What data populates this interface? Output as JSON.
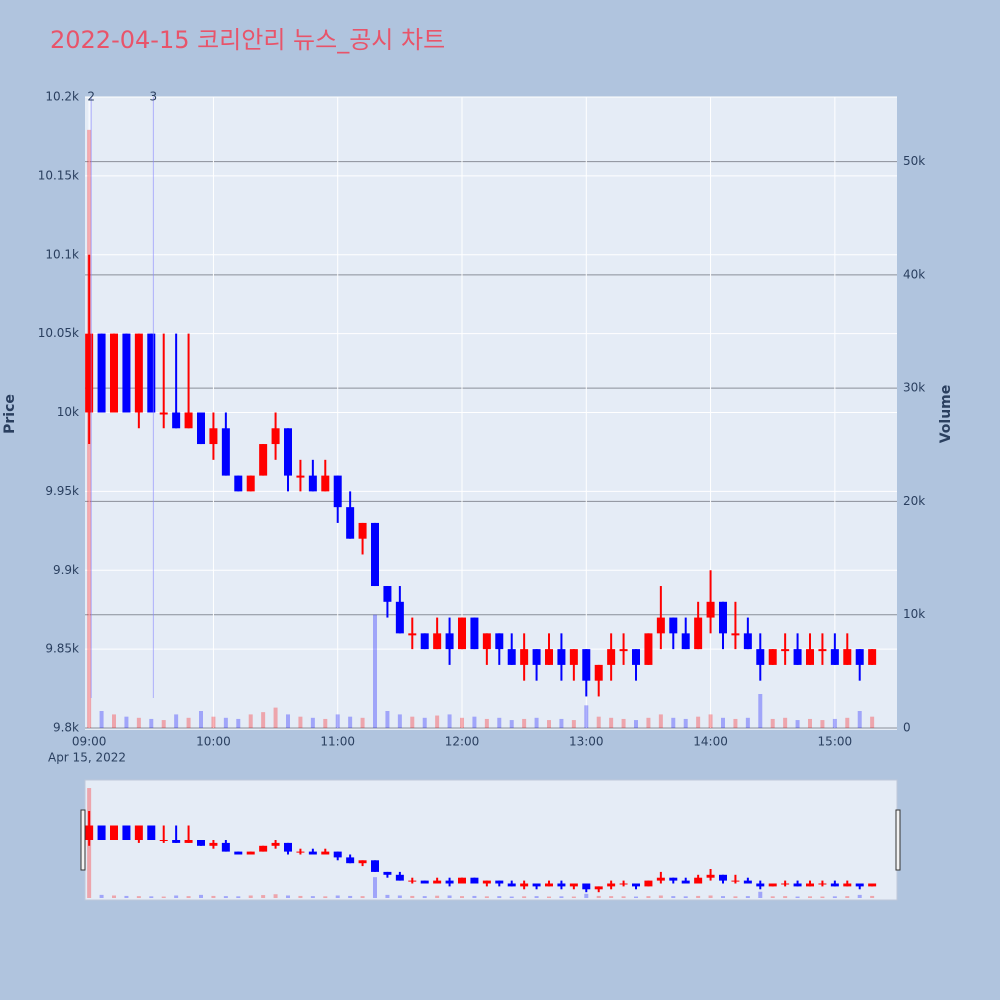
{
  "chart_data": {
    "type": "candlestick",
    "title": "2022-04-15 코리안리 뉴스_공시 차트",
    "y_title": "Price",
    "y2_title": "Volume",
    "x": [
      "2022-04-15T09:00",
      "2022-04-15T09:06",
      "2022-04-15T09:12",
      "2022-04-15T09:18",
      "2022-04-15T09:24",
      "2022-04-15T09:30",
      "2022-04-15T09:36",
      "2022-04-15T09:42",
      "2022-04-15T09:48",
      "2022-04-15T09:54",
      "2022-04-15T10:00",
      "2022-04-15T10:06",
      "2022-04-15T10:12",
      "2022-04-15T10:18",
      "2022-04-15T10:24",
      "2022-04-15T10:30",
      "2022-04-15T10:36",
      "2022-04-15T10:42",
      "2022-04-15T10:48",
      "2022-04-15T10:54",
      "2022-04-15T11:00",
      "2022-04-15T11:06",
      "2022-04-15T11:12",
      "2022-04-15T11:18",
      "2022-04-15T11:24",
      "2022-04-15T11:30",
      "2022-04-15T11:36",
      "2022-04-15T11:42",
      "2022-04-15T11:48",
      "2022-04-15T11:54",
      "2022-04-15T12:00",
      "2022-04-15T12:06",
      "2022-04-15T12:12",
      "2022-04-15T12:18",
      "2022-04-15T12:24",
      "2022-04-15T12:30",
      "2022-04-15T12:36",
      "2022-04-15T12:42",
      "2022-04-15T12:48",
      "2022-04-15T12:54",
      "2022-04-15T13:00",
      "2022-04-15T13:06",
      "2022-04-15T13:12",
      "2022-04-15T13:18",
      "2022-04-15T13:24",
      "2022-04-15T13:30",
      "2022-04-15T13:36",
      "2022-04-15T13:42",
      "2022-04-15T13:48",
      "2022-04-15T13:54",
      "2022-04-15T14:00",
      "2022-04-15T14:06",
      "2022-04-15T14:12",
      "2022-04-15T14:18",
      "2022-04-15T14:24",
      "2022-04-15T14:30",
      "2022-04-15T14:36",
      "2022-04-15T14:42",
      "2022-04-15T14:48",
      "2022-04-15T14:54",
      "2022-04-15T15:00",
      "2022-04-15T15:06",
      "2022-04-15T15:12",
      "2022-04-15T15:18"
    ],
    "open": [
      10000,
      10050,
      10000,
      10050,
      10000,
      10050,
      10000,
      10000,
      9990,
      10000,
      9980,
      9990,
      9960,
      9950,
      9960,
      9980,
      9990,
      9960,
      9960,
      9950,
      9960,
      9940,
      9920,
      9930,
      9890,
      9880,
      9860,
      9860,
      9850,
      9860,
      9850,
      9870,
      9850,
      9860,
      9850,
      9840,
      9850,
      9840,
      9850,
      9840,
      9850,
      9830,
      9840,
      9850,
      9850,
      9840,
      9860,
      9870,
      9860,
      9850,
      9870,
      9880,
      9860,
      9860,
      9850,
      9840,
      9850,
      9850,
      9840,
      9850,
      9850,
      9840,
      9850,
      9840
    ],
    "high": [
      10100,
      10050,
      10050,
      10050,
      10050,
      10050,
      10050,
      10050,
      10050,
      10000,
      10000,
      10000,
      9960,
      9960,
      9980,
      10000,
      9990,
      9970,
      9970,
      9970,
      9960,
      9950,
      9930,
      9930,
      9890,
      9890,
      9870,
      9860,
      9870,
      9870,
      9870,
      9870,
      9860,
      9860,
      9860,
      9860,
      9850,
      9860,
      9860,
      9850,
      9850,
      9840,
      9860,
      9860,
      9850,
      9860,
      9890,
      9870,
      9870,
      9880,
      9900,
      9880,
      9880,
      9870,
      9860,
      9850,
      9860,
      9860,
      9860,
      9860,
      9860,
      9860,
      9850,
      9850
    ],
    "low": [
      9980,
      10000,
      10000,
      10000,
      9990,
      10000,
      9990,
      9990,
      9990,
      9980,
      9970,
      9960,
      9950,
      9950,
      9960,
      9970,
      9950,
      9950,
      9950,
      9950,
      9930,
      9920,
      9910,
      9890,
      9870,
      9860,
      9850,
      9850,
      9850,
      9840,
      9850,
      9850,
      9840,
      9840,
      9840,
      9830,
      9830,
      9840,
      9830,
      9830,
      9820,
      9820,
      9830,
      9840,
      9830,
      9840,
      9850,
      9850,
      9850,
      9850,
      9860,
      9850,
      9850,
      9850,
      9830,
      9840,
      9840,
      9840,
      9840,
      9840,
      9840,
      9840,
      9830,
      9840
    ],
    "close": [
      10050,
      10000,
      10050,
      10000,
      10050,
      10000,
      10000,
      9990,
      10000,
      9980,
      9990,
      9960,
      9950,
      9960,
      9980,
      9990,
      9960,
      9960,
      9950,
      9960,
      9940,
      9920,
      9930,
      9890,
      9880,
      9860,
      9860,
      9850,
      9860,
      9850,
      9870,
      9850,
      9860,
      9850,
      9840,
      9850,
      9840,
      9850,
      9840,
      9850,
      9830,
      9840,
      9850,
      9850,
      9840,
      9860,
      9870,
      9860,
      9850,
      9870,
      9880,
      9860,
      9860,
      9850,
      9840,
      9850,
      9850,
      9840,
      9850,
      9850,
      9840,
      9850,
      9840,
      9850
    ],
    "volume": [
      52800,
      1500,
      1200,
      1000,
      900,
      800,
      700,
      1200,
      900,
      1500,
      1000,
      900,
      800,
      1200,
      1400,
      1800,
      1200,
      1000,
      900,
      800,
      1200,
      1000,
      900,
      10000,
      1500,
      1200,
      1000,
      900,
      1100,
      1200,
      900,
      1000,
      800,
      900,
      700,
      800,
      900,
      700,
      800,
      700,
      2000,
      1000,
      900,
      800,
      700,
      900,
      1200,
      900,
      800,
      1000,
      1200,
      900,
      800,
      900,
      3000,
      800,
      900,
      700,
      800,
      700,
      800,
      900,
      1500,
      1000
    ],
    "increasing_color": "#ff0000",
    "decreasing_color": "#0000ff",
    "xlim": [
      "2022-04-15T08:58",
      "2022-04-15T15:30"
    ],
    "xticks": [
      {
        "value": "2022-04-15T09:00",
        "label": "09:00"
      },
      {
        "value": "2022-04-15T10:00",
        "label": "10:00"
      },
      {
        "value": "2022-04-15T11:00",
        "label": "11:00"
      },
      {
        "value": "2022-04-15T12:00",
        "label": "12:00"
      },
      {
        "value": "2022-04-15T13:00",
        "label": "13:00"
      },
      {
        "value": "2022-04-15T14:00",
        "label": "14:00"
      },
      {
        "value": "2022-04-15T15:00",
        "label": "15:00"
      }
    ],
    "x_date_label": "Apr 15, 2022",
    "ylim": [
      9800,
      10200
    ],
    "yticks": [
      {
        "value": 9800,
        "label": "9.8k"
      },
      {
        "value": 9850,
        "label": "9.85k"
      },
      {
        "value": 9900,
        "label": "9.9k"
      },
      {
        "value": 9950,
        "label": "9.95k"
      },
      {
        "value": 10000,
        "label": "10k"
      },
      {
        "value": 10050,
        "label": "10.05k"
      },
      {
        "value": 10100,
        "label": "10.1k"
      },
      {
        "value": 10150,
        "label": "10.15k"
      },
      {
        "value": 10200,
        "label": "10.2k"
      }
    ],
    "y2lim": [
      0,
      55700
    ],
    "y2ticks": [
      0,
      {
        "value": 10000,
        "label": "10k"
      },
      {
        "value": 20000,
        "label": "20k"
      },
      {
        "value": 30000,
        "label": "30k"
      },
      {
        "value": 40000,
        "label": "40k"
      },
      {
        "value": 50000,
        "label": "50k"
      }
    ],
    "annotations": [
      {
        "x": "2022-04-15T09:01",
        "text": "2"
      },
      {
        "x": "2022-04-15T09:31",
        "text": "3"
      }
    ],
    "grid": true
  }
}
